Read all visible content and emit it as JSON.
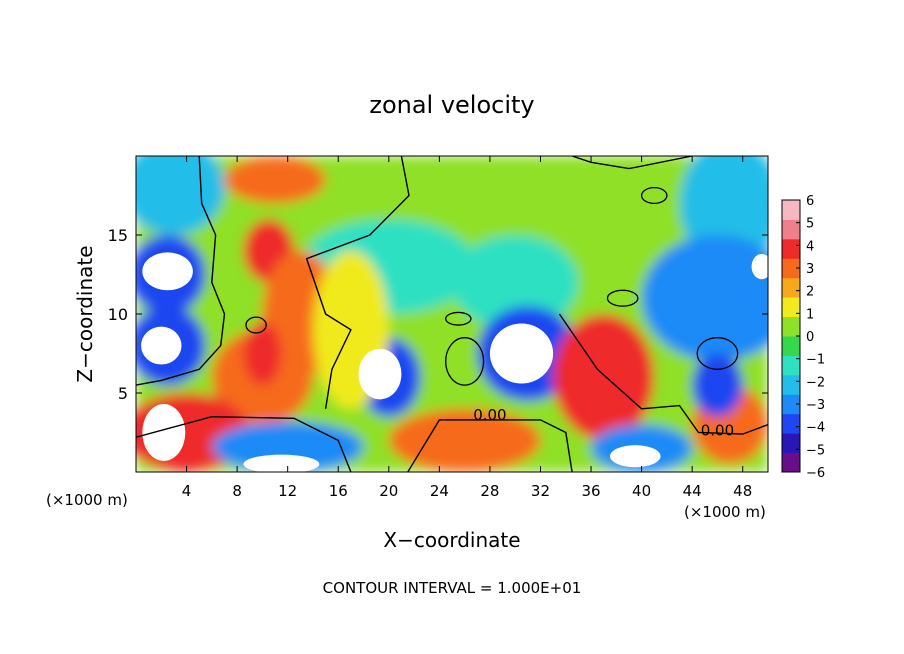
{
  "chart_data": {
    "type": "heatmap",
    "title": "zonal velocity",
    "xlabel": "X−coordinate",
    "ylabel": "Z−coordinate",
    "x_unit_left": "(×1000 m)",
    "x_unit_right": "(×1000 m)",
    "footer": "CONTOUR INTERVAL = 1.000E+01",
    "xlim": [
      0,
      50
    ],
    "ylim": [
      0,
      20
    ],
    "x_ticks": [
      "4",
      "8",
      "12",
      "16",
      "20",
      "24",
      "28",
      "32",
      "36",
      "40",
      "44",
      "48"
    ],
    "y_ticks": [
      "5",
      "10",
      "15"
    ],
    "colorbar": {
      "range": [
        -6,
        6
      ],
      "ticks": [
        "6",
        "5",
        "4",
        "3",
        "2",
        "1",
        "0",
        "−1",
        "−2",
        "−3",
        "−4",
        "−5",
        "−6"
      ],
      "colors": [
        "#6a0d8a",
        "#2a16b4",
        "#1f46f0",
        "#1f8af7",
        "#22bde8",
        "#2fe0c2",
        "#35d84c",
        "#8fe028",
        "#f0ea1e",
        "#f7a81c",
        "#f66a1c",
        "#ee2a2a",
        "#f07f8c",
        "#f6b8c2"
      ]
    },
    "contour_labels": [
      {
        "text": "0.00",
        "x": 28,
        "y": 3.3
      },
      {
        "text": "0.00",
        "x": 46,
        "y": 2.3
      }
    ],
    "grid": false,
    "legend": "colorbar-right"
  }
}
